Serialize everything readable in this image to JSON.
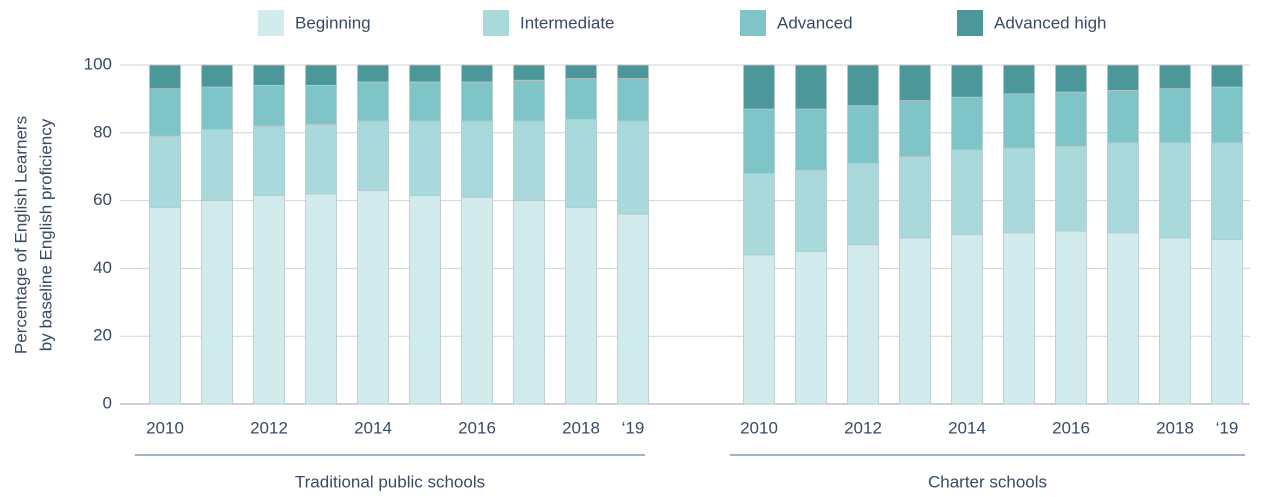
{
  "chart_data": {
    "type": "bar",
    "stacked": true,
    "y_label": [
      "Percentage of English Learners",
      "by baseline English proficiency"
    ],
    "ylim": [
      0,
      100
    ],
    "yticks": [
      0,
      20,
      40,
      60,
      80,
      100
    ],
    "grid": true,
    "series": [
      {
        "name": "Beginning",
        "color": "#d2ebed"
      },
      {
        "name": "Intermediate",
        "color": "#a9d9db"
      },
      {
        "name": "Advanced",
        "color": "#7fc5c8"
      },
      {
        "name": "Advanced high",
        "color": "#4b9799"
      }
    ],
    "groups": [
      {
        "label": "Traditional public schools",
        "categories": [
          "2010",
          null,
          "2012",
          null,
          "2014",
          null,
          "2016",
          null,
          "2018",
          "‘19"
        ],
        "values": [
          [
            58,
            60,
            61.5,
            62,
            63,
            61.5,
            61,
            60,
            58,
            56
          ],
          [
            21,
            21,
            20.5,
            20.5,
            20.5,
            22,
            22.5,
            23.5,
            26,
            27.5
          ],
          [
            14,
            12.5,
            12,
            11.5,
            11.5,
            11.5,
            11.5,
            12,
            12,
            12.5
          ],
          [
            7,
            6.5,
            6,
            6,
            5,
            5,
            5,
            4.5,
            4,
            4
          ]
        ]
      },
      {
        "label": "Charter schools",
        "categories": [
          "2010",
          null,
          "2012",
          null,
          "2014",
          null,
          "2016",
          null,
          "2018",
          "‘19"
        ],
        "values": [
          [
            44,
            45,
            47,
            49,
            50,
            50.5,
            51,
            50.5,
            49,
            48.5
          ],
          [
            24,
            24,
            24,
            24,
            25,
            25,
            25,
            26.5,
            28,
            28.5
          ],
          [
            19,
            18,
            17,
            16.5,
            15.5,
            16,
            16,
            15.5,
            16,
            16.5
          ],
          [
            13,
            13,
            12,
            10.5,
            9.5,
            8.5,
            8,
            7.5,
            7,
            6.5
          ]
        ]
      }
    ]
  }
}
